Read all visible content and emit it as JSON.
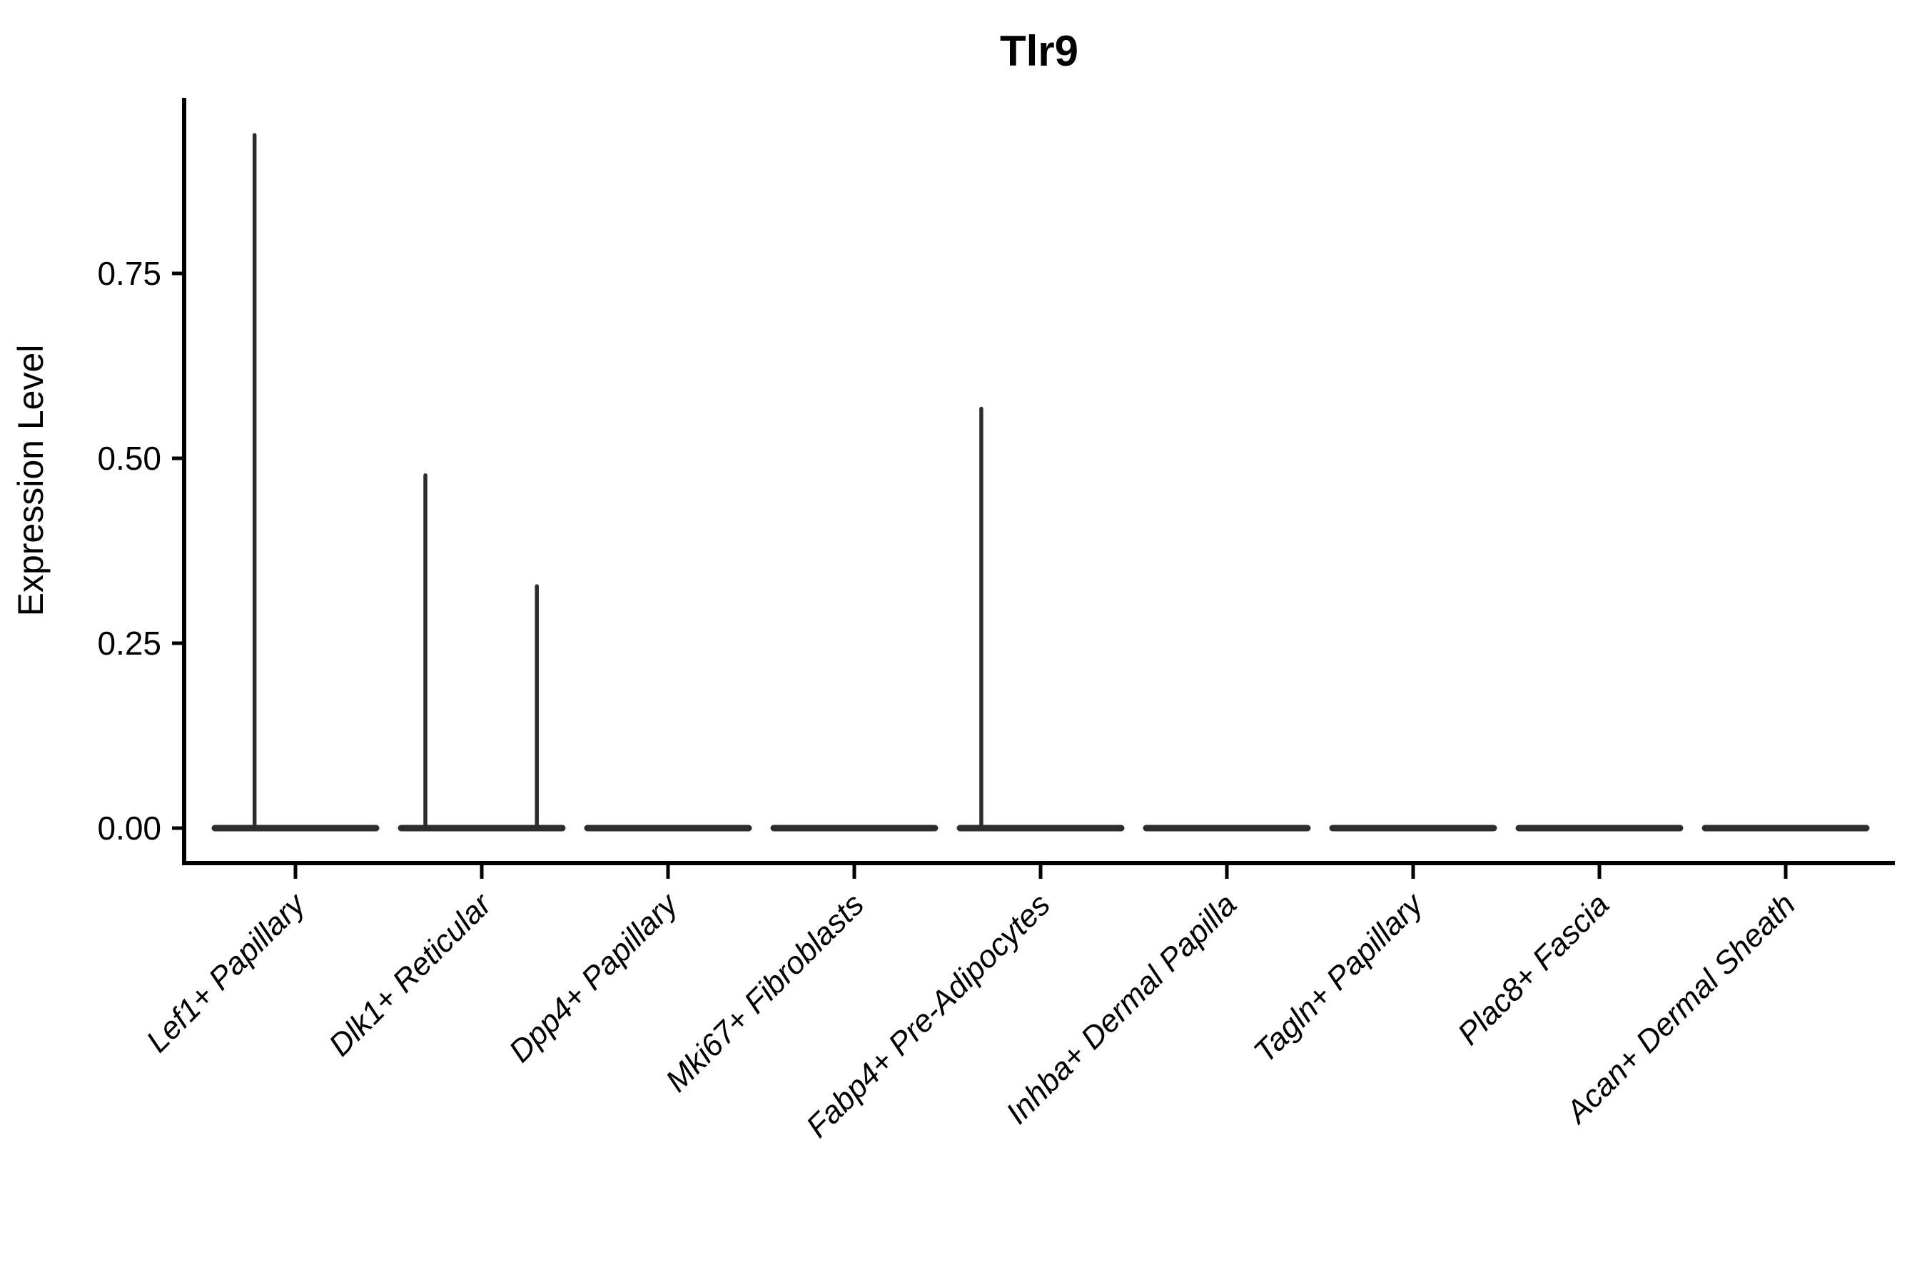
{
  "title": "Tlr9",
  "y_axis": {
    "label": "Expression Level",
    "tick_labels": [
      "0.00",
      "0.25",
      "0.50",
      "0.75"
    ]
  },
  "chart_data": {
    "type": "violin",
    "title": "Tlr9",
    "xlabel": "",
    "ylabel": "Expression Level",
    "categories": [
      "Lef1+ Papillary",
      "Dlk1+ Reticular",
      "Dpp4+ Papillary",
      "Mki67+ Fibroblasts",
      "Fabp4+ Pre-Adipocytes",
      "Inhba+ Dermal Papilla",
      "Tagln+ Papillary",
      "Plac8+ Fascia",
      "Acan+ Dermal Sheath"
    ],
    "y_tick_values": [
      0,
      0.25,
      0.5,
      0.75
    ],
    "y_tick_labels": [
      "0.00",
      "0.25",
      "0.50",
      "0.75"
    ],
    "ylim": [
      -0.047,
      0.988
    ],
    "grid": false,
    "legend": false,
    "baseline_value": 0,
    "violins": [
      {
        "category": "Lef1+ Papillary",
        "base_value": 0,
        "spikes": [
          {
            "value": 0.94,
            "offset_frac": -0.49
          }
        ]
      },
      {
        "category": "Dlk1+ Reticular",
        "base_value": 0,
        "spikes": [
          {
            "value": 0.48,
            "offset_frac": -0.675
          },
          {
            "value": 0.33,
            "offset_frac": 0.66
          }
        ]
      },
      {
        "category": "Dpp4+ Papillary",
        "base_value": 0,
        "spikes": []
      },
      {
        "category": "Mki67+ Fibroblasts",
        "base_value": 0,
        "spikes": []
      },
      {
        "category": "Fabp4+ Pre-Adipocytes",
        "base_value": 0,
        "spikes": [
          {
            "value": 0.57,
            "offset_frac": -0.71
          }
        ]
      },
      {
        "category": "Inhba+ Dermal Papilla",
        "base_value": 0,
        "spikes": []
      },
      {
        "category": "Tagln+ Papillary",
        "base_value": 0,
        "spikes": []
      },
      {
        "category": "Plac8+ Fascia",
        "base_value": 0,
        "spikes": []
      },
      {
        "category": "Acan+ Dermal Sheath",
        "base_value": 0,
        "spikes": []
      }
    ],
    "colors": {
      "violin_stroke": "#2d2d2d",
      "axis": "#000000",
      "text": "#000000",
      "background": "#ffffff"
    }
  }
}
